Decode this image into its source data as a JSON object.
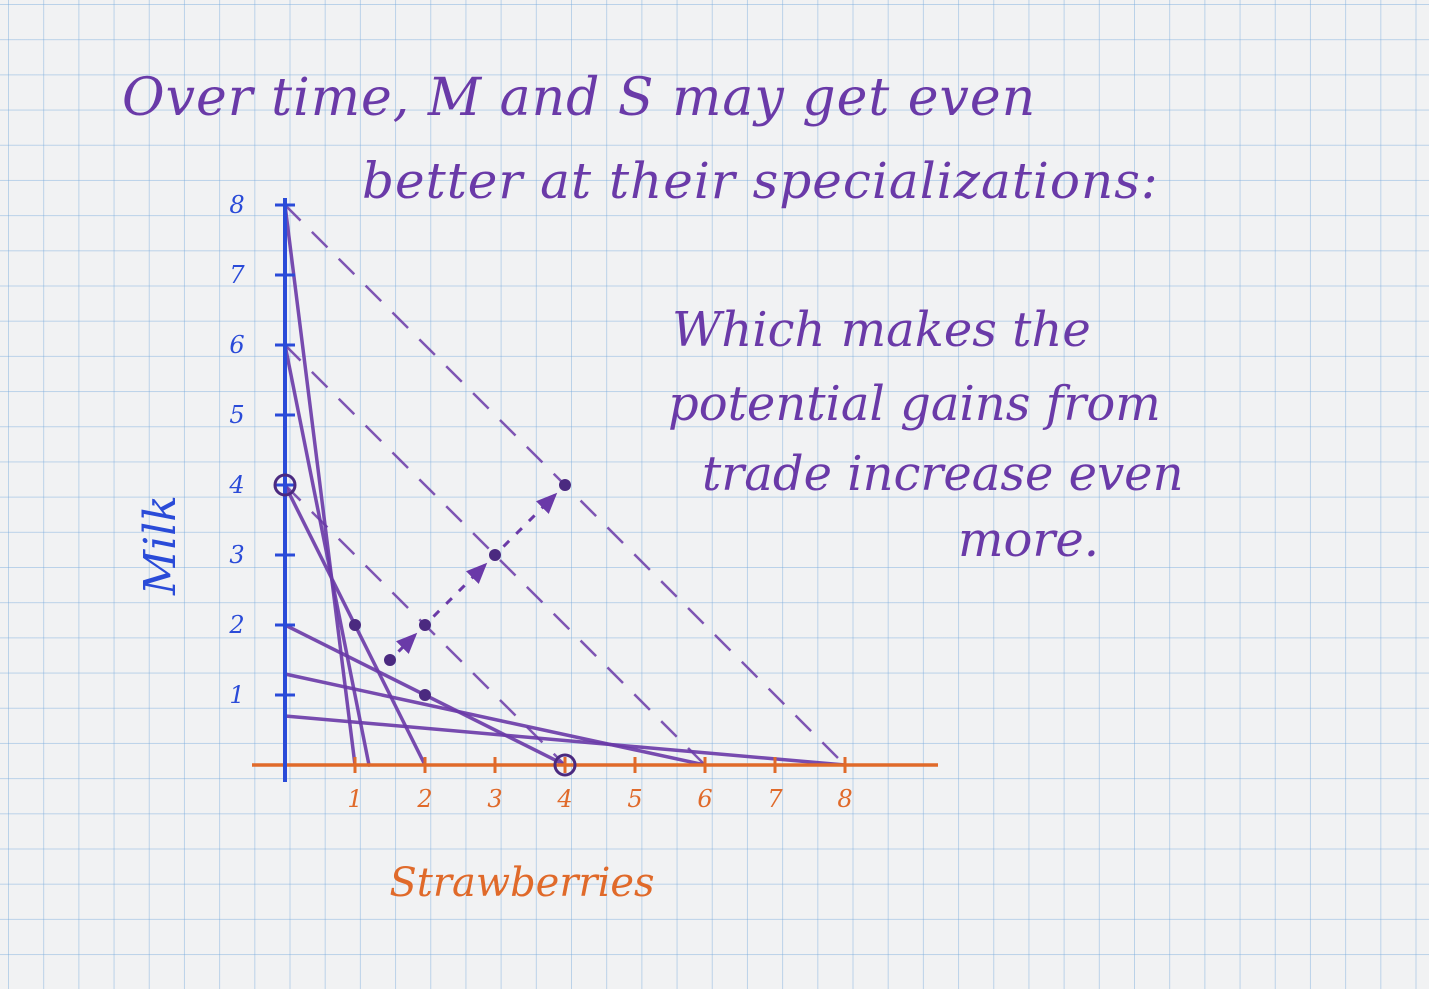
{
  "title": {
    "line1": "Over time, M and S may get even",
    "line2": "better at their specializations:"
  },
  "note": {
    "line1": "Which makes the",
    "line2": "potential gains from",
    "line3": "trade increase even",
    "line4": "more."
  },
  "colors": {
    "milk_axis": "#2a4bd8",
    "strawberry_axis": "#e06a2a",
    "ink": "#6a3aa8",
    "grid": "#8fb7e0"
  },
  "chart_data": {
    "type": "line",
    "xlabel": "Strawberries",
    "ylabel": "Milk",
    "xlim": [
      0,
      8
    ],
    "ylim": [
      0,
      8
    ],
    "x_ticks": [
      "1",
      "2",
      "3",
      "4",
      "5",
      "6",
      "7",
      "8"
    ],
    "y_ticks": [
      "1",
      "2",
      "3",
      "4",
      "5",
      "6",
      "7",
      "8"
    ],
    "frontiers": [
      {
        "from": [
          0,
          8
        ],
        "to": [
          1,
          0
        ]
      },
      {
        "from": [
          0,
          6
        ],
        "to": [
          1.2,
          0
        ]
      },
      {
        "from": [
          0,
          4
        ],
        "to": [
          2,
          0
        ]
      },
      {
        "from": [
          0,
          2
        ],
        "to": [
          4,
          0
        ]
      },
      {
        "from": [
          0,
          1.3
        ],
        "to": [
          6,
          0
        ]
      },
      {
        "from": [
          0,
          0.7
        ],
        "to": [
          8,
          0
        ]
      }
    ],
    "trade_lines": [
      {
        "from": [
          0,
          4
        ],
        "to": [
          4,
          0
        ]
      },
      {
        "from": [
          0,
          6
        ],
        "to": [
          6,
          0
        ]
      },
      {
        "from": [
          0,
          8
        ],
        "to": [
          8,
          0
        ]
      }
    ],
    "points": [
      [
        2,
        1
      ],
      [
        1,
        2
      ],
      [
        1.5,
        1.5
      ],
      [
        2,
        2
      ],
      [
        3,
        3
      ],
      [
        4,
        4
      ]
    ],
    "circled_points": [
      [
        0,
        4
      ],
      [
        4,
        0
      ]
    ],
    "arrow_path": [
      [
        1.5,
        1.5
      ],
      [
        2,
        2
      ],
      [
        3,
        3
      ],
      [
        4,
        4
      ]
    ]
  }
}
